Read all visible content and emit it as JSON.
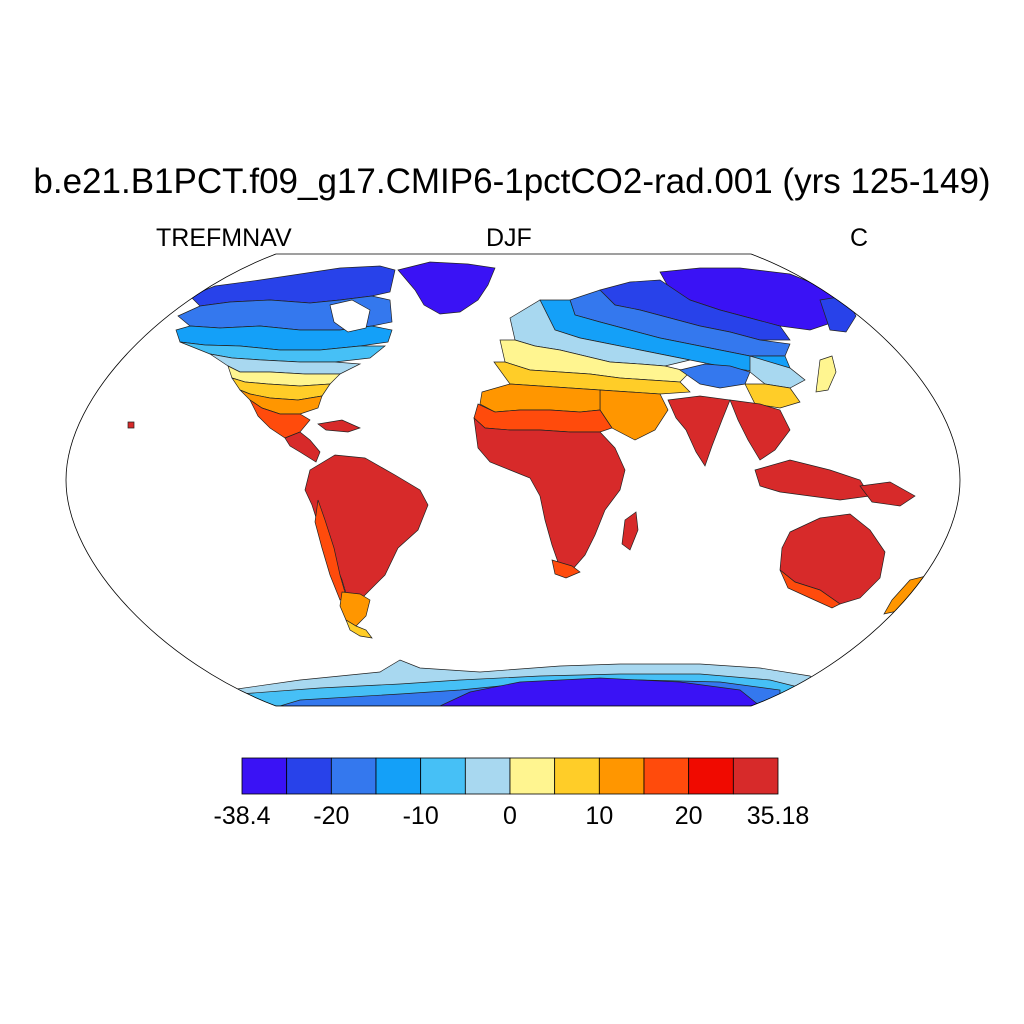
{
  "map": {
    "title": "b.e21.B1PCT.f09_g17.CMIP6-1pctCO2-rad.001 (yrs 125-149)",
    "left_label": "TREFMNAV",
    "center_label": "DJF",
    "right_label": "C",
    "projection": "robinson",
    "field": "minimum reference-height temperature, DJF mean",
    "colors": {
      "deep_cold": "#3a12f5",
      "ocean": "#ffffff",
      "coastline": "#000000"
    }
  },
  "colorbar": {
    "colors": [
      "#3a12f5",
      "#2842ea",
      "#3478ee",
      "#14a0f8",
      "#46c0f6",
      "#a8d8f0",
      "#fff590",
      "#ffcd28",
      "#ff9600",
      "#ff4b0c",
      "#f00a00",
      "#d72a2a"
    ],
    "labels": [
      {
        "text": "-38.4",
        "boundary": 0
      },
      {
        "text": "-20",
        "boundary": 2
      },
      {
        "text": "-10",
        "boundary": 4
      },
      {
        "text": "0",
        "boundary": 6
      },
      {
        "text": "10",
        "boundary": 8
      },
      {
        "text": "20",
        "boundary": 10
      },
      {
        "text": "35.18",
        "boundary": 12
      }
    ]
  }
}
